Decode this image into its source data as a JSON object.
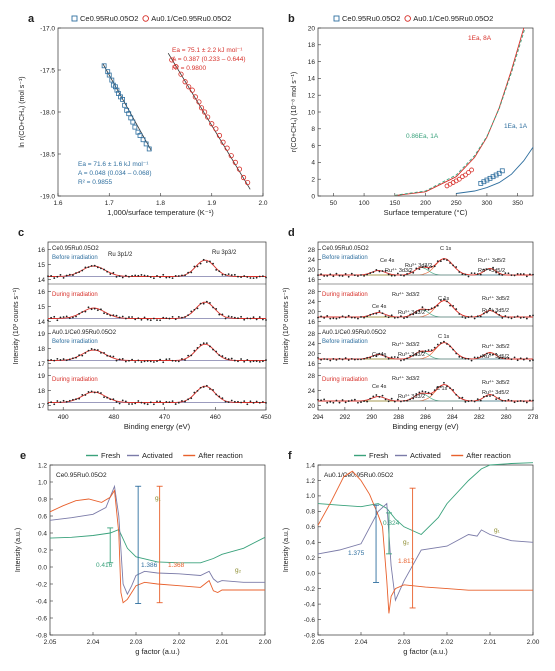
{
  "panels": {
    "a": {
      "letter": "a",
      "legend": [
        "Ce0.95Ru0.05O2",
        "Au0.1/Ce0.95Ru0.05O2"
      ],
      "xlabel": "1,000/surface temperature (K⁻¹)",
      "ylabel": "ln r(CO+CH₄) (mol s⁻¹)",
      "ann_red": [
        "Ea = 75.1 ± 2.2 kJ mol⁻¹",
        "A = 0.387 (0.233 – 0.644)",
        "R² = 0.9800"
      ],
      "ann_blue": [
        "Ea = 71.6 ± 1.6 kJ mol⁻¹",
        "A = 0.048 (0.034 – 0.068)",
        "R² = 0.9855"
      ]
    },
    "b": {
      "letter": "b",
      "legend": [
        "Ce0.95Ru0.05O2",
        "Au0.1/Ce0.95Ru0.05O2"
      ],
      "xlabel": "Surface temperature (°C)",
      "ylabel": "r(CO+CH₄) (10⁻⁸ mol s⁻¹)",
      "ann": [
        "1Ea, 8A",
        "0.86Ea, 1A",
        "1Ea, 1A"
      ]
    },
    "c": {
      "letter": "c",
      "xlabel": "Binding energy (eV)",
      "ylabel": "Intensity (10³ counts s⁻¹)",
      "labels": [
        "Ce0.95Ru0.05O2",
        "Before irradiation",
        "During irradiation",
        "Au0.1/Ce0.95Ru0.05O2",
        "Before irradiation",
        "During irradiation",
        "Ru 3p1/2",
        "Ru 3p3/2"
      ]
    },
    "d": {
      "letter": "d",
      "xlabel": "Binding energy (eV)",
      "ylabel": "Intensity (10³ counts s⁻¹)",
      "labels": [
        "Ce0.95Ru0.05O2",
        "Before irradiation",
        "During irradiation",
        "Au0.1/Ce0.95Ru0.05O2",
        "Before irradiation",
        "During irradiation",
        "C 1s",
        "Ce 4s",
        "Ru⁴⁺ 3d3/2",
        "Ru³⁺ 3d3/2",
        "Ru⁴⁺ 3d5/2",
        "Ru³⁺ 3d5/2"
      ]
    },
    "e": {
      "letter": "e",
      "legend": [
        "Fresh",
        "Activated",
        "After reaction"
      ],
      "sample": "Ce0.95Ru0.05O2",
      "xlabel": "g factor (a.u.)",
      "ylabel": "Intensity (a.u.)",
      "ann": [
        "g₁",
        "g₂",
        "0.416",
        "1.386",
        "1.368"
      ]
    },
    "f": {
      "letter": "f",
      "legend": [
        "Fresh",
        "Activated",
        "After reaction"
      ],
      "sample": "Au0.1/Ce0.95Ru0.05O2",
      "xlabel": "g factor (a.u.)",
      "ylabel": "Intensity (a.u.)",
      "ann": [
        "g₁",
        "g₂",
        "1.375",
        "0.324",
        "1.817"
      ]
    }
  },
  "colors": {
    "blue": "#2f6f9f",
    "red": "#d7302a",
    "green": "#3aa27c",
    "purple": "#7b7ba8",
    "orange": "#e8602c",
    "gray": "#888888"
  },
  "chart_data": [
    {
      "id": "a",
      "type": "scatter",
      "xlabel": "1,000/surface temperature (K⁻¹)",
      "ylabel": "ln r(CO+CH₄) (mol s⁻¹)",
      "xlim": [
        1.6,
        2.0
      ],
      "ylim": [
        -19.0,
        -17.0
      ],
      "xticks": [
        1.6,
        1.7,
        1.8,
        1.9,
        2.0
      ],
      "yticks": [
        -17.0,
        -17.5,
        -18.0,
        -18.5,
        -19.0
      ],
      "series": [
        {
          "name": "Ce0.95Ru0.05O2",
          "x": [
            1.69,
            1.697,
            1.7,
            1.705,
            1.708,
            1.712,
            1.715,
            1.718,
            1.722,
            1.726,
            1.73,
            1.734,
            1.738,
            1.742,
            1.746,
            1.75,
            1.756,
            1.76,
            1.766,
            1.772,
            1.778
          ],
          "y": [
            -17.45,
            -17.52,
            -17.56,
            -17.62,
            -17.68,
            -17.7,
            -17.74,
            -17.78,
            -17.82,
            -17.85,
            -17.92,
            -17.98,
            -18.02,
            -18.07,
            -18.12,
            -18.18,
            -18.24,
            -18.28,
            -18.33,
            -18.38,
            -18.44
          ],
          "fit": {
            "x": [
              1.688,
              1.782
            ],
            "y": [
              -17.43,
              -18.46
            ]
          }
        },
        {
          "name": "Au0.1/Ce0.95Ru0.05O2",
          "x": [
            1.822,
            1.83,
            1.84,
            1.848,
            1.855,
            1.862,
            1.868,
            1.875,
            1.88,
            1.886,
            1.892,
            1.9,
            1.908,
            1.915,
            1.922,
            1.93,
            1.938,
            1.946,
            1.954,
            1.962,
            1.97
          ],
          "y": [
            -17.38,
            -17.46,
            -17.55,
            -17.64,
            -17.7,
            -17.74,
            -17.82,
            -17.88,
            -17.95,
            -18.0,
            -18.06,
            -18.14,
            -18.2,
            -18.28,
            -18.36,
            -18.43,
            -18.52,
            -18.6,
            -18.68,
            -18.78,
            -18.84
          ],
          "fit": {
            "x": [
              1.815,
              1.975
            ],
            "y": [
              -17.3,
              -18.92
            ]
          }
        }
      ]
    },
    {
      "id": "b",
      "type": "line",
      "xlabel": "Surface temperature (°C)",
      "ylabel": "r(CO+CH₄) (10⁻⁸ mol s⁻¹)",
      "xlim": [
        25,
        375
      ],
      "ylim": [
        0,
        20
      ],
      "xticks": [
        50,
        100,
        150,
        200,
        250,
        300,
        350
      ],
      "yticks": [
        0,
        2,
        4,
        6,
        8,
        10,
        12,
        14,
        16,
        18,
        20
      ],
      "series": [
        {
          "name": "Ce0.95Ru0.05O2",
          "x": [
            290,
            295,
            300,
            305,
            310,
            315,
            320,
            325
          ],
          "y": [
            1.5,
            1.7,
            1.9,
            2.1,
            2.3,
            2.5,
            2.7,
            3.0
          ]
        },
        {
          "name": "Au0.1/Ce0.95Ru0.05O2",
          "x": [
            235,
            240,
            245,
            250,
            255,
            260,
            265,
            270,
            275
          ],
          "y": [
            1.2,
            1.4,
            1.6,
            1.8,
            2.0,
            2.3,
            2.5,
            2.8,
            3.1
          ]
        }
      ],
      "curves": [
        {
          "label": "1Ea, 8A",
          "x": [
            150,
            200,
            250,
            280,
            300,
            320,
            340,
            360
          ],
          "y": [
            0.05,
            0.5,
            2.3,
            4.6,
            7.0,
            10.5,
            15.0,
            20.0
          ]
        },
        {
          "label": "0.86Ea, 1A",
          "x": [
            150,
            200,
            250,
            280,
            300,
            320,
            340,
            362
          ],
          "y": [
            0.08,
            0.6,
            2.5,
            4.8,
            7.1,
            10.4,
            14.7,
            20.0
          ]
        },
        {
          "label": "1Ea, 1A",
          "x": [
            250,
            280,
            300,
            320,
            340,
            360,
            375
          ],
          "y": [
            0.3,
            0.6,
            1.0,
            1.6,
            2.6,
            4.2,
            5.8
          ]
        }
      ]
    },
    {
      "id": "c",
      "type": "line",
      "xlabel": "Binding energy (eV)",
      "ylabel": "Intensity (10³ counts s⁻¹)",
      "xlim": [
        493,
        450
      ],
      "xticks": [
        490,
        480,
        470,
        460,
        450
      ],
      "stack_yticks": [
        [
          14,
          15,
          16
        ],
        [
          14,
          15,
          16
        ],
        [
          17,
          18,
          19
        ],
        [
          17,
          18,
          19
        ]
      ]
    },
    {
      "id": "d",
      "type": "line",
      "xlabel": "Binding energy (eV)",
      "ylabel": "Intensity (10³ counts s⁻¹)",
      "xlim": [
        294,
        278
      ],
      "xticks": [
        294,
        292,
        290,
        288,
        286,
        284,
        282,
        280,
        278
      ],
      "stack_yticks": [
        [
          16,
          20,
          24,
          28
        ],
        [
          16,
          20,
          24,
          28
        ],
        [
          16,
          20,
          24,
          28
        ],
        [
          20,
          24,
          28
        ]
      ]
    },
    {
      "id": "e",
      "type": "line",
      "xlabel": "g factor (a.u.)",
      "ylabel": "Intensity (a.u.)",
      "xlim": [
        2.05,
        2.0
      ],
      "ylim": [
        -0.8,
        1.2
      ],
      "xticks": [
        2.05,
        2.04,
        2.03,
        2.02,
        2.01,
        2.0
      ],
      "yticks": [
        -0.8,
        -0.6,
        -0.4,
        -0.2,
        0,
        0.2,
        0.4,
        0.6,
        0.8,
        1.0,
        1.2
      ],
      "series": [
        {
          "name": "Fresh",
          "x": [
            2.05,
            2.045,
            2.04,
            2.036,
            2.034,
            2.032,
            2.03,
            2.025,
            2.02,
            2.015,
            2.012,
            2.01,
            2.005,
            2.0
          ],
          "y": [
            0.34,
            0.35,
            0.37,
            0.4,
            0.44,
            0.22,
            0.12,
            0.06,
            0.05,
            0.05,
            0.1,
            0.15,
            0.22,
            0.35
          ]
        },
        {
          "name": "Activated",
          "x": [
            2.05,
            2.045,
            2.04,
            2.037,
            2.035,
            2.034,
            2.033,
            2.032,
            2.031,
            2.03,
            2.028,
            2.025,
            2.02,
            2.015,
            2.013,
            2.012,
            2.011,
            2.01,
            2.005,
            2.0
          ],
          "y": [
            0.55,
            0.58,
            0.62,
            0.7,
            0.95,
            0.6,
            -0.2,
            -0.32,
            -0.22,
            -0.1,
            -0.05,
            -0.07,
            -0.08,
            -0.1,
            -0.05,
            -0.14,
            -0.18,
            -0.16,
            -0.18,
            -0.18
          ]
        },
        {
          "name": "After reaction",
          "x": [
            2.05,
            2.047,
            2.044,
            2.041,
            2.038,
            2.036,
            2.035,
            2.034,
            2.0335,
            2.033,
            2.032,
            2.031,
            2.03,
            2.028,
            2.025,
            2.02,
            2.015,
            2.013,
            2.012,
            2.011,
            2.01,
            2.005,
            2.0
          ],
          "y": [
            0.65,
            0.72,
            0.78,
            0.8,
            0.76,
            0.82,
            0.9,
            0.4,
            -0.3,
            -0.42,
            -0.38,
            -0.3,
            -0.22,
            -0.18,
            -0.2,
            -0.22,
            -0.24,
            -0.16,
            -0.28,
            -0.3,
            -0.27,
            -0.27,
            -0.27
          ]
        }
      ]
    },
    {
      "id": "f",
      "type": "line",
      "xlabel": "g factor (a.u.)",
      "ylabel": "Intensity (a.u.)",
      "xlim": [
        2.05,
        2.0
      ],
      "ylim": [
        -0.8,
        1.4
      ],
      "xticks": [
        2.05,
        2.04,
        2.03,
        2.02,
        2.01,
        2.0
      ],
      "yticks": [
        -0.8,
        -0.6,
        -0.4,
        -0.2,
        0,
        0.2,
        0.4,
        0.6,
        0.8,
        1.0,
        1.2,
        1.4
      ],
      "series": [
        {
          "name": "Fresh",
          "x": [
            2.05,
            2.045,
            2.04,
            2.036,
            2.034,
            2.032,
            2.03,
            2.026,
            2.022,
            2.02,
            2.015,
            2.012,
            2.01,
            2.005,
            2.0
          ],
          "y": [
            0.9,
            0.88,
            0.86,
            0.9,
            0.84,
            0.7,
            0.6,
            0.5,
            0.72,
            0.9,
            1.2,
            1.35,
            1.4,
            1.42,
            1.43
          ]
        },
        {
          "name": "Activated",
          "x": [
            2.05,
            2.045,
            2.04,
            2.036,
            2.034,
            2.033,
            2.032,
            2.03,
            2.026,
            2.02,
            2.015,
            2.013,
            2.012,
            2.01,
            2.005,
            2.0
          ],
          "y": [
            0.25,
            0.3,
            0.38,
            0.8,
            0.9,
            0.1,
            -0.35,
            -0.1,
            0.3,
            0.35,
            0.5,
            0.48,
            0.56,
            0.5,
            0.42,
            0.4
          ]
        },
        {
          "name": "After reaction",
          "x": [
            2.05,
            2.047,
            2.044,
            2.042,
            2.04,
            2.038,
            2.036,
            2.035,
            2.034,
            2.0335,
            2.033,
            2.032,
            2.03,
            2.025,
            2.02,
            2.015,
            2.012,
            2.01,
            2.005,
            2.0
          ],
          "y": [
            0.62,
            0.92,
            1.25,
            1.32,
            1.2,
            1.02,
            0.75,
            0.6,
            -0.1,
            -0.52,
            -0.3,
            -0.2,
            -0.15,
            -0.18,
            -0.2,
            -0.22,
            -0.22,
            -0.22,
            -0.22,
            -0.22
          ]
        }
      ]
    }
  ]
}
